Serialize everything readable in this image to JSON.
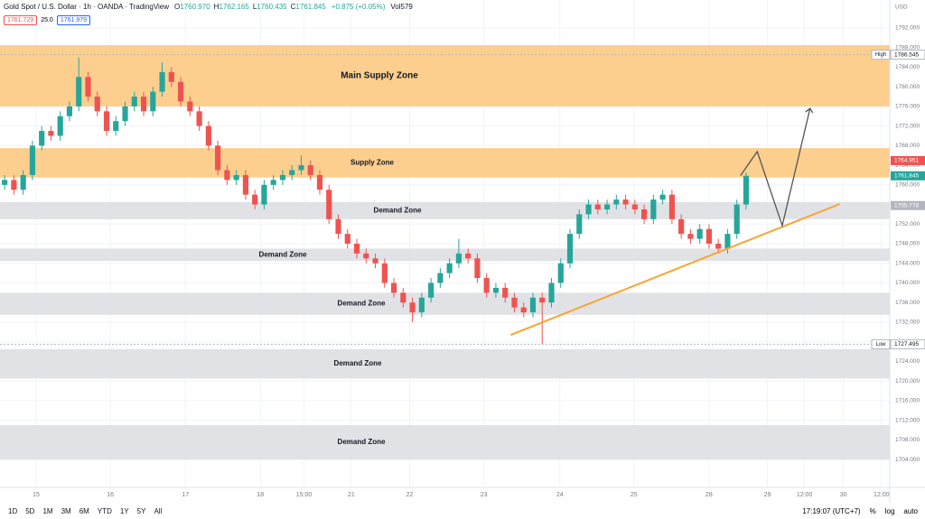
{
  "header": {
    "symbol": "Gold Spot / U.S. Dollar · 1h · OANDA · TradingView",
    "ohlc": [
      {
        "key": "O",
        "value": "1760.970"
      },
      {
        "key": "H",
        "value": "1762.165"
      },
      {
        "key": "L",
        "value": "1760.435"
      },
      {
        "key": "C",
        "value": "1761.845"
      }
    ],
    "change": "+0.875 (+0.05%)",
    "volume": "Vol579",
    "sell": "1761.729",
    "spread": "25.0",
    "buy": "1761.979",
    "currency": "USD"
  },
  "chart_data": {
    "type": "candlestick",
    "xlim": [
      -0.5,
      95.5
    ],
    "ylim": [
      1698.3,
      1797.7
    ],
    "open": [
      1760,
      1761,
      1759,
      1762,
      1768,
      1771,
      1770,
      1774,
      1776,
      1782,
      1778,
      1775,
      1771,
      1773,
      1776,
      1778,
      1775,
      1779,
      1783,
      1781,
      1777,
      1775,
      1772,
      1768,
      1763,
      1761,
      1762,
      1758,
      1756,
      1760,
      1761,
      1762,
      1763,
      1764,
      1762,
      1759,
      1753,
      1750,
      1748,
      1746,
      1745,
      1744,
      1740,
      1738,
      1736,
      1734,
      1737,
      1740,
      1742,
      1744,
      1746,
      1745,
      1741,
      1738,
      1739,
      1737,
      1735,
      1734,
      1737,
      1736,
      1740,
      1744,
      1750,
      1754,
      1756,
      1755,
      1756,
      1757,
      1756,
      1755,
      1753,
      1757,
      1758,
      1753,
      1750,
      1749,
      1751,
      1748,
      1747,
      1750,
      1756
    ],
    "high": [
      1762,
      1762,
      1763,
      1769,
      1772,
      1772,
      1775,
      1777,
      1786,
      1783,
      1779,
      1776,
      1774,
      1777,
      1779,
      1779,
      1780,
      1785,
      1784,
      1782,
      1778,
      1776,
      1773,
      1769,
      1764,
      1763,
      1763,
      1759,
      1761,
      1762,
      1763,
      1764,
      1766,
      1765,
      1763,
      1760,
      1754,
      1751,
      1749,
      1747,
      1746,
      1745,
      1741,
      1739,
      1737,
      1738,
      1741,
      1743,
      1745,
      1749,
      1747,
      1746,
      1742,
      1740,
      1740,
      1738,
      1736,
      1738,
      1738,
      1741,
      1745,
      1751,
      1755,
      1757,
      1757,
      1757,
      1758,
      1758,
      1757,
      1756,
      1758,
      1759,
      1759,
      1754,
      1751,
      1752,
      1752,
      1749,
      1751,
      1757,
      1762.5
    ],
    "low": [
      1759,
      1758,
      1758,
      1761,
      1767,
      1769,
      1769,
      1773,
      1775,
      1777,
      1774,
      1770,
      1770,
      1772,
      1775,
      1774,
      1774,
      1778,
      1780,
      1776,
      1774,
      1771,
      1767,
      1762,
      1760,
      1760,
      1757,
      1755,
      1755,
      1759,
      1760,
      1761,
      1762,
      1761,
      1758,
      1752,
      1749,
      1747,
      1745,
      1744,
      1743,
      1739,
      1737,
      1735,
      1732,
      1733,
      1736,
      1739,
      1741,
      1743,
      1744,
      1740,
      1737,
      1737,
      1736,
      1734,
      1733,
      1733,
      1727.5,
      1735,
      1739,
      1743,
      1749,
      1753,
      1754,
      1754,
      1755,
      1755,
      1754,
      1752,
      1752,
      1756,
      1752,
      1749,
      1748,
      1748,
      1747,
      1746,
      1746,
      1749,
      1755
    ],
    "close": [
      1761,
      1759,
      1762,
      1768,
      1771,
      1770,
      1774,
      1776,
      1782,
      1778,
      1775,
      1771,
      1773,
      1776,
      1778,
      1775,
      1779,
      1783,
      1781,
      1777,
      1775,
      1772,
      1768,
      1763,
      1761,
      1762,
      1758,
      1756,
      1760,
      1761,
      1762,
      1763,
      1764,
      1762,
      1759,
      1753,
      1750,
      1748,
      1746,
      1745,
      1744,
      1740,
      1738,
      1736,
      1734,
      1737,
      1740,
      1742,
      1744,
      1746,
      1745,
      1741,
      1738,
      1739,
      1737,
      1735,
      1734,
      1737,
      1736,
      1740,
      1744,
      1750,
      1754,
      1756,
      1755,
      1756,
      1757,
      1756,
      1755,
      1753,
      1757,
      1758,
      1753,
      1750,
      1749,
      1751,
      1748,
      1747,
      1750,
      1756,
      1761.845
    ],
    "up_color": "#26a69a",
    "down_color": "#ef5350",
    "yticks": [
      {
        "value": 1704,
        "label": "1704.000"
      },
      {
        "value": 1708,
        "label": "1708.000"
      },
      {
        "value": 1712,
        "label": "1712.000"
      },
      {
        "value": 1716,
        "label": "1716.000"
      },
      {
        "value": 1720,
        "label": "1720.000"
      },
      {
        "value": 1724,
        "label": "1724.000"
      },
      {
        "value": 1728,
        "label": "1728.000"
      },
      {
        "value": 1732,
        "label": "1732.000"
      },
      {
        "value": 1736,
        "label": "1736.000"
      },
      {
        "value": 1740,
        "label": "1740.000"
      },
      {
        "value": 1744,
        "label": "1744.000"
      },
      {
        "value": 1748,
        "label": "1748.000"
      },
      {
        "value": 1752,
        "label": "1752.000"
      },
      {
        "value": 1756,
        "label": "1756.000"
      },
      {
        "value": 1760,
        "label": "1760.000"
      },
      {
        "value": 1764,
        "label": "1764.000"
      },
      {
        "value": 1768,
        "label": "1768.000"
      },
      {
        "value": 1772,
        "label": "1772.000"
      },
      {
        "value": 1776,
        "label": "1776.000"
      },
      {
        "value": 1780,
        "label": "1780.000"
      },
      {
        "value": 1784,
        "label": "1784.000"
      },
      {
        "value": 1788,
        "label": "1788.000"
      },
      {
        "value": 1792,
        "label": "1792.000"
      }
    ],
    "xticks": [
      {
        "value": 3.4,
        "label": "15"
      },
      {
        "value": 11.4,
        "label": "16"
      },
      {
        "value": 19.5,
        "label": "17"
      },
      {
        "value": 27.6,
        "label": "18"
      },
      {
        "value": 32.3,
        "label": "15:00"
      },
      {
        "value": 37.4,
        "label": "21"
      },
      {
        "value": 43.7,
        "label": "22"
      },
      {
        "value": 51.7,
        "label": "23"
      },
      {
        "value": 59.9,
        "label": "24"
      },
      {
        "value": 67.9,
        "label": "25"
      },
      {
        "value": 76,
        "label": "28"
      },
      {
        "value": 82.3,
        "label": "29"
      },
      {
        "value": 86.3,
        "label": "12:00"
      },
      {
        "value": 90.5,
        "label": "30"
      },
      {
        "value": 94.6,
        "label": "12:00"
      }
    ],
    "grid": true,
    "zones": [
      {
        "label": "Main Supply Zone",
        "top": 1788.5,
        "bottom": 1776,
        "color": "#fdc77b"
      },
      {
        "label": "Supply Zone",
        "top": 1767.5,
        "bottom": 1761.5,
        "color": "#fdc77b"
      },
      {
        "label": "Demand Zone",
        "top": 1756.5,
        "bottom": 1753,
        "color": "#dcdde2"
      },
      {
        "label": "Demand Zone",
        "top": 1747,
        "bottom": 1744.5,
        "color": "#dcdde2"
      },
      {
        "label": "Demand Zone",
        "top": 1738,
        "bottom": 1733.5,
        "color": "#dcdde2"
      },
      {
        "label": "Demand Zone",
        "top": 1726.5,
        "bottom": 1720.5,
        "color": "#dcdde2"
      },
      {
        "label": "Demand Zone",
        "top": 1711,
        "bottom": 1704,
        "color": "#dcdde2"
      }
    ],
    "trendline": {
      "x": [
        54.6,
        90.1
      ],
      "y": [
        1729.4,
        1756.1
      ],
      "color": "#f7a531"
    },
    "projection": {
      "x": [
        79.4,
        81.2,
        83.9,
        86.9
      ],
      "y": [
        1761.9,
        1766.8,
        1751.7,
        1775.6
      ],
      "color": "#555555"
    },
    "price_labels": [
      {
        "value": 1786.545,
        "tag": "High",
        "color": "#ffffff"
      },
      {
        "value": 1764.951,
        "color": "#ef5350"
      },
      {
        "value": 1761.845,
        "color": "#26a69a"
      },
      {
        "value": 1755.778,
        "color": "#b2b5be"
      },
      {
        "value": 1727.495,
        "tag": "Low",
        "color": "#ffffff"
      }
    ]
  },
  "footer": {
    "ranges": [
      "1D",
      "5D",
      "1M",
      "3M",
      "6M",
      "YTD",
      "1Y",
      "5Y",
      "All"
    ],
    "time": "17:19:07 (UTC+7)",
    "options": [
      "%",
      "log",
      "auto"
    ]
  }
}
